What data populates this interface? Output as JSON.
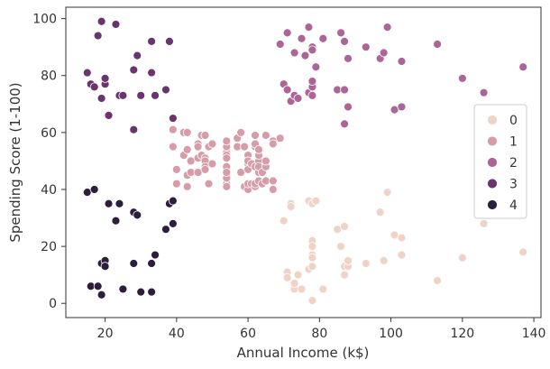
{
  "chart_data": {
    "type": "scatter",
    "xlabel": "Annual Income (k$)",
    "ylabel": "Spending Score (1-100)",
    "xlim": [
      9,
      142
    ],
    "ylim": [
      -5,
      104
    ],
    "xticks": [
      20,
      40,
      60,
      80,
      100,
      120,
      140
    ],
    "yticks": [
      0,
      20,
      40,
      60,
      80,
      100
    ],
    "grid": false,
    "legend": {
      "placement": "right",
      "entries": [
        "0",
        "1",
        "2",
        "3",
        "4"
      ]
    },
    "series": [
      {
        "name": "0",
        "color": "#f0d3c7",
        "points": [
          [
            70,
            29
          ],
          [
            71,
            11
          ],
          [
            71,
            9
          ],
          [
            72,
            35
          ],
          [
            72,
            34
          ],
          [
            73,
            5
          ],
          [
            73,
            7
          ],
          [
            74,
            10
          ],
          [
            75,
            5
          ],
          [
            77,
            12
          ],
          [
            77,
            36
          ],
          [
            78,
            1
          ],
          [
            78,
            22
          ],
          [
            78,
            17
          ],
          [
            78,
            20
          ],
          [
            78,
            16
          ],
          [
            78,
            13
          ],
          [
            78,
            35
          ],
          [
            78,
            16
          ],
          [
            79,
            36
          ],
          [
            81,
            5
          ],
          [
            85,
            26
          ],
          [
            86,
            20
          ],
          [
            87,
            27
          ],
          [
            87,
            13
          ],
          [
            87,
            10
          ],
          [
            88,
            13
          ],
          [
            88,
            15
          ],
          [
            93,
            14
          ],
          [
            97,
            32
          ],
          [
            98,
            15
          ],
          [
            99,
            39
          ],
          [
            101,
            24
          ],
          [
            103,
            17
          ],
          [
            103,
            23
          ],
          [
            113,
            8
          ],
          [
            120,
            16
          ],
          [
            126,
            28
          ],
          [
            137,
            18
          ]
        ]
      },
      {
        "name": "1",
        "color": "#d69da8",
        "points": [
          [
            39,
            61
          ],
          [
            39,
            55
          ],
          [
            40,
            47
          ],
          [
            40,
            42
          ],
          [
            40,
            42
          ],
          [
            42,
            52
          ],
          [
            42,
            60
          ],
          [
            43,
            54
          ],
          [
            43,
            60
          ],
          [
            43,
            45
          ],
          [
            43,
            41
          ],
          [
            44,
            50
          ],
          [
            44,
            46
          ],
          [
            46,
            51
          ],
          [
            46,
            46
          ],
          [
            46,
            56
          ],
          [
            46,
            55
          ],
          [
            47,
            52
          ],
          [
            47,
            59
          ],
          [
            48,
            51
          ],
          [
            48,
            59
          ],
          [
            48,
            50
          ],
          [
            48,
            48
          ],
          [
            48,
            59
          ],
          [
            48,
            47
          ],
          [
            49,
            55
          ],
          [
            49,
            42
          ],
          [
            50,
            49
          ],
          [
            50,
            56
          ],
          [
            54,
            47
          ],
          [
            54,
            54
          ],
          [
            54,
            53
          ],
          [
            54,
            48
          ],
          [
            54,
            52
          ],
          [
            54,
            42
          ],
          [
            54,
            51
          ],
          [
            54,
            55
          ],
          [
            54,
            41
          ],
          [
            54,
            44
          ],
          [
            54,
            57
          ],
          [
            54,
            46
          ],
          [
            57,
            58
          ],
          [
            57,
            55
          ],
          [
            58,
            60
          ],
          [
            58,
            46
          ],
          [
            59,
            55
          ],
          [
            59,
            41
          ],
          [
            60,
            49
          ],
          [
            60,
            40
          ],
          [
            60,
            42
          ],
          [
            60,
            52
          ],
          [
            60,
            47
          ],
          [
            60,
            50
          ],
          [
            61,
            42
          ],
          [
            61,
            49
          ],
          [
            62,
            41
          ],
          [
            62,
            48
          ],
          [
            62,
            59
          ],
          [
            62,
            55
          ],
          [
            62,
            56
          ],
          [
            62,
            42
          ],
          [
            63,
            50
          ],
          [
            63,
            46
          ],
          [
            63,
            43
          ],
          [
            63,
            48
          ],
          [
            63,
            52
          ],
          [
            63,
            54
          ],
          [
            64,
            42
          ],
          [
            64,
            46
          ],
          [
            65,
            48
          ],
          [
            65,
            50
          ],
          [
            65,
            43
          ],
          [
            65,
            59
          ],
          [
            67,
            43
          ],
          [
            67,
            57
          ],
          [
            67,
            56
          ],
          [
            67,
            40
          ],
          [
            69,
            58
          ]
        ]
      },
      {
        "name": "2",
        "color": "#ab6597",
        "points": [
          [
            69,
            91
          ],
          [
            70,
            77
          ],
          [
            71,
            95
          ],
          [
            71,
            75
          ],
          [
            71,
            75
          ],
          [
            72,
            71
          ],
          [
            73,
            88
          ],
          [
            73,
            73
          ],
          [
            74,
            72
          ],
          [
            75,
            93
          ],
          [
            76,
            87
          ],
          [
            77,
            97
          ],
          [
            77,
            74
          ],
          [
            78,
            90
          ],
          [
            78,
            76
          ],
          [
            78,
            89
          ],
          [
            78,
            78
          ],
          [
            78,
            73
          ],
          [
            79,
            83
          ],
          [
            81,
            93
          ],
          [
            85,
            75
          ],
          [
            86,
            95
          ],
          [
            87,
            63
          ],
          [
            87,
            75
          ],
          [
            87,
            92
          ],
          [
            88,
            86
          ],
          [
            88,
            69
          ],
          [
            93,
            90
          ],
          [
            97,
            86
          ],
          [
            98,
            88
          ],
          [
            99,
            97
          ],
          [
            101,
            68
          ],
          [
            103,
            85
          ],
          [
            103,
            69
          ],
          [
            113,
            91
          ],
          [
            120,
            79
          ],
          [
            126,
            74
          ],
          [
            137,
            83
          ]
        ]
      },
      {
        "name": "3",
        "color": "#6a356f",
        "points": [
          [
            15,
            81
          ],
          [
            16,
            77
          ],
          [
            17,
            76
          ],
          [
            18,
            94
          ],
          [
            19,
            72
          ],
          [
            19,
            99
          ],
          [
            20,
            77
          ],
          [
            20,
            79
          ],
          [
            21,
            66
          ],
          [
            23,
            98
          ],
          [
            24,
            73
          ],
          [
            25,
            73
          ],
          [
            28,
            82
          ],
          [
            28,
            61
          ],
          [
            29,
            87
          ],
          [
            30,
            73
          ],
          [
            33,
            92
          ],
          [
            33,
            81
          ],
          [
            34,
            73
          ],
          [
            37,
            75
          ],
          [
            38,
            92
          ],
          [
            39,
            65
          ]
        ]
      },
      {
        "name": "4",
        "color": "#2d1e3e",
        "points": [
          [
            15,
            39
          ],
          [
            16,
            6
          ],
          [
            17,
            40
          ],
          [
            18,
            6
          ],
          [
            19,
            3
          ],
          [
            19,
            14
          ],
          [
            20,
            15
          ],
          [
            20,
            13
          ],
          [
            21,
            35
          ],
          [
            23,
            29
          ],
          [
            24,
            35
          ],
          [
            25,
            5
          ],
          [
            28,
            14
          ],
          [
            28,
            32
          ],
          [
            29,
            31
          ],
          [
            30,
            4
          ],
          [
            33,
            4
          ],
          [
            33,
            14
          ],
          [
            34,
            17
          ],
          [
            37,
            26
          ],
          [
            38,
            35
          ],
          [
            39,
            36
          ],
          [
            39,
            28
          ]
        ]
      }
    ]
  }
}
